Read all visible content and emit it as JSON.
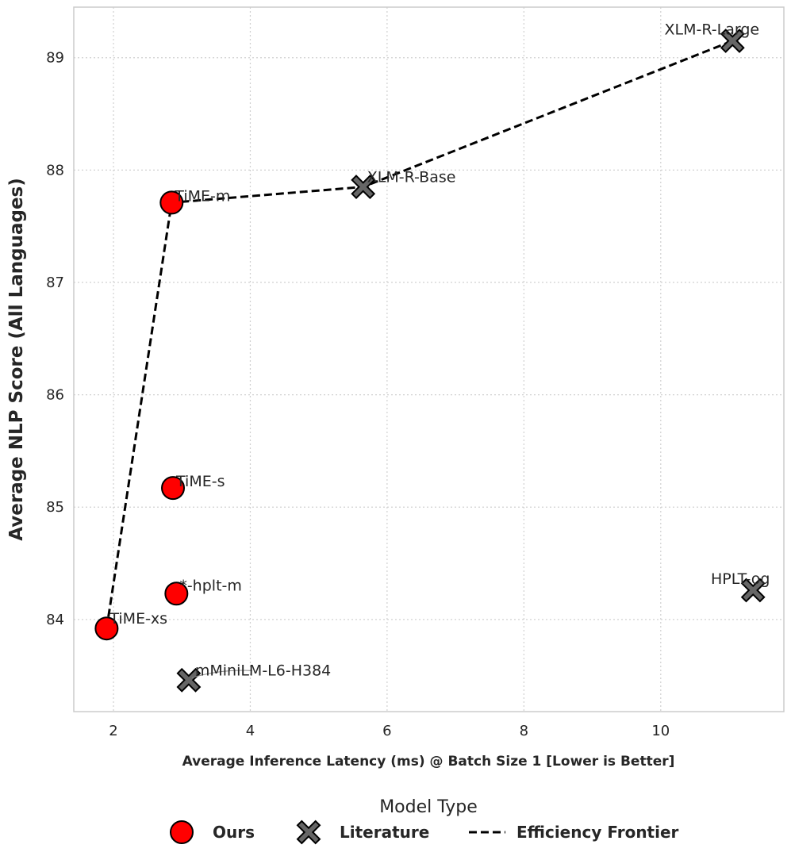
{
  "chart_data": {
    "type": "scatter",
    "xlabel": "Average Inference Latency (ms) @ Batch Size 1 [Lower is Better]",
    "ylabel": "Average NLP Score (All Languages)",
    "xlim": [
      1.42,
      11.8
    ],
    "ylim": [
      83.18,
      89.45
    ],
    "xticks": [
      2,
      4,
      6,
      8,
      10
    ],
    "yticks": [
      84,
      85,
      86,
      87,
      88,
      89
    ],
    "grid": true,
    "legend": {
      "title": "Model Type",
      "placement": "bottom-center",
      "entries": [
        {
          "label": "Ours",
          "marker": "circle",
          "color": "#ff0000"
        },
        {
          "label": "Literature",
          "marker": "x",
          "color": "#666666"
        },
        {
          "label": "Efficiency Frontier",
          "marker": "dashed-line",
          "color": "#000000"
        }
      ]
    },
    "series": [
      {
        "name": "Ours",
        "marker": "circle",
        "color": "#ff0000",
        "points": [
          {
            "label": "TiME-xs",
            "x": 1.9,
            "y": 83.92
          },
          {
            "label": "TiME-s",
            "x": 2.87,
            "y": 85.17
          },
          {
            "label": "TiME-m",
            "x": 2.85,
            "y": 87.71
          },
          {
            "label": "*-hplt-m",
            "x": 2.92,
            "y": 84.23
          }
        ]
      },
      {
        "name": "Literature",
        "marker": "x",
        "color": "#666666",
        "points": [
          {
            "label": "XLM-R-Base",
            "x": 5.65,
            "y": 87.85
          },
          {
            "label": "XLM-R-Large",
            "x": 11.05,
            "y": 89.15
          },
          {
            "label": "HPLT-og",
            "x": 11.35,
            "y": 84.26
          },
          {
            "label": "mMiniLM-L6-H384",
            "x": 3.1,
            "y": 83.46
          }
        ]
      },
      {
        "name": "Efficiency Frontier",
        "type": "line",
        "style": "dashed",
        "color": "#000000",
        "x": [
          1.9,
          2.85,
          5.65,
          11.05
        ],
        "y": [
          83.92,
          87.71,
          87.85,
          89.15
        ]
      }
    ]
  }
}
